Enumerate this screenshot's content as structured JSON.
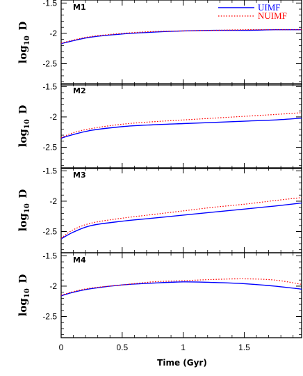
{
  "colors": {
    "uimf": "#0000ff",
    "nuimf": "#ff0000",
    "axes": "#000000"
  },
  "chart_data": {
    "type": "line",
    "xlabel": "Time (Gyr)",
    "ylabel": {
      "main": "log",
      "sub": "10",
      "var": "D"
    },
    "xlim": [
      0,
      1.97
    ],
    "ylim": [
      -2.85,
      -1.45
    ],
    "x_ticks": [
      0,
      0.5,
      1,
      1.5
    ],
    "x_tick_labels": [
      "0",
      "0.5",
      "1",
      "1.5"
    ],
    "y_ticks": [
      -1.5,
      -2,
      -2.5
    ],
    "y_tick_labels": [
      "-1.5",
      "-2",
      "-2.5"
    ],
    "legend": {
      "position": "top-right",
      "entries": [
        {
          "name": "UIMF",
          "color": "#0000ff",
          "dash": "solid"
        },
        {
          "name": "NUIMF",
          "color": "#ff0000",
          "dash": "dotted"
        }
      ]
    },
    "x": [
      0,
      0.1,
      0.25,
      0.5,
      0.75,
      1.0,
      1.25,
      1.5,
      1.75,
      1.97
    ],
    "panels": [
      {
        "label": "M1",
        "series": [
          {
            "name": "UIMF",
            "values": [
              -2.17,
              -2.12,
              -2.06,
              -2.01,
              -1.98,
              -1.96,
              -1.95,
              -1.95,
              -1.94,
              -1.94
            ]
          },
          {
            "name": "NUIMF",
            "values": [
              -2.16,
              -2.11,
              -2.05,
              -2.0,
              -1.97,
              -1.96,
              -1.95,
              -1.94,
              -1.94,
              -1.94
            ]
          }
        ]
      },
      {
        "label": "M2",
        "series": [
          {
            "name": "UIMF",
            "values": [
              -2.35,
              -2.29,
              -2.22,
              -2.16,
              -2.13,
              -2.11,
              -2.09,
              -2.07,
              -2.05,
              -2.02
            ]
          },
          {
            "name": "NUIMF",
            "values": [
              -2.34,
              -2.26,
              -2.19,
              -2.12,
              -2.08,
              -2.05,
              -2.02,
              -1.99,
              -1.96,
              -1.93
            ]
          }
        ]
      },
      {
        "label": "M3",
        "series": [
          {
            "name": "UIMF",
            "values": [
              -2.62,
              -2.51,
              -2.4,
              -2.33,
              -2.28,
              -2.23,
              -2.18,
              -2.13,
              -2.08,
              -2.03
            ]
          },
          {
            "name": "NUIMF",
            "values": [
              -2.61,
              -2.47,
              -2.36,
              -2.28,
              -2.22,
              -2.16,
              -2.1,
              -2.05,
              -1.99,
              -1.94
            ]
          }
        ]
      },
      {
        "label": "M4",
        "series": [
          {
            "name": "UIMF",
            "values": [
              -2.16,
              -2.1,
              -2.04,
              -1.98,
              -1.95,
              -1.93,
              -1.94,
              -1.96,
              -2.0,
              -2.05
            ]
          },
          {
            "name": "NUIMF",
            "values": [
              -2.15,
              -2.09,
              -2.03,
              -1.98,
              -1.93,
              -1.91,
              -1.89,
              -1.88,
              -1.9,
              -1.97
            ]
          }
        ]
      }
    ]
  }
}
